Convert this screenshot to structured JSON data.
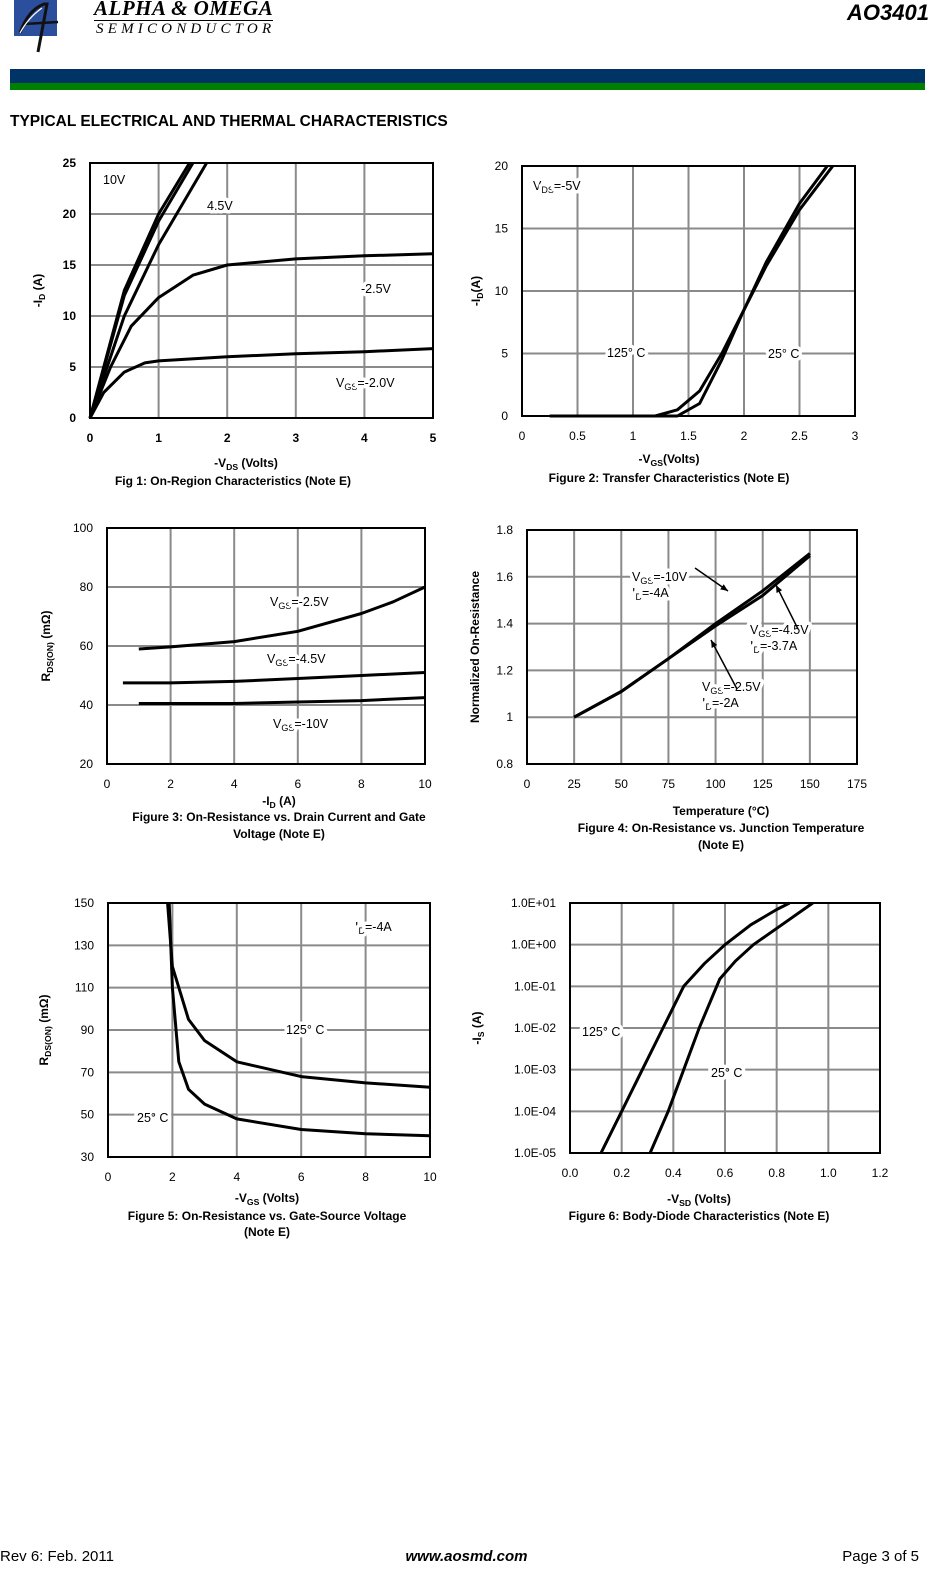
{
  "header": {
    "brand_name": "ALPHA & OMEGA",
    "brand_sub": "SEMICONDUCTOR",
    "part_number": "AO3401",
    "section_title": "TYPICAL ELECTRICAL AND THERMAL CHARACTERISTICS",
    "colors": {
      "bar_top": "#003366",
      "bar_bottom": "#008000",
      "logo": "#2b4f9c"
    }
  },
  "footer": {
    "revision": "Rev 6: Feb. 2011",
    "url": "www.aosmd.com",
    "page": "Page 3 of 5"
  },
  "chart_data": [
    {
      "type": "line",
      "caption": "Fig 1: On-Region Characteristics (Note E)",
      "xlabel": {
        "pre": "-V",
        "sub": "DS",
        "post": " (Volts)"
      },
      "ylabel": {
        "pre": "-I",
        "sub": "D",
        "post": " (A)"
      },
      "xlim": [
        0,
        5
      ],
      "ylim": [
        0,
        25
      ],
      "grid": true,
      "yscale": "linear",
      "xticks": [
        0,
        1,
        2,
        3,
        4,
        5
      ],
      "xtick_labels": [
        "0",
        "1",
        "2",
        "3",
        "4",
        "5"
      ],
      "yticks": [
        0,
        5,
        10,
        15,
        20,
        25
      ],
      "ytick_labels": [
        "0",
        "5",
        "10",
        "15",
        "20",
        "25"
      ],
      "annotations": [
        {
          "pre": "10V",
          "sub": "",
          "post": ""
        },
        {
          "pre": "4.5V",
          "sub": "",
          "post": ""
        },
        {
          "pre": "-2.5V",
          "sub": "",
          "post": ""
        },
        {
          "pre": "V",
          "sub": "GS",
          "post": "=-2.0V"
        }
      ],
      "series": [
        {
          "x": [
            0,
            0.5,
            1,
            1.45
          ],
          "y": [
            0,
            12.5,
            20,
            25
          ]
        },
        {
          "x": [
            0,
            0.5,
            1,
            1.5
          ],
          "y": [
            0,
            12,
            19.3,
            25
          ]
        },
        {
          "x": [
            0,
            0.5,
            1,
            1.7
          ],
          "y": [
            0,
            10,
            17,
            25
          ]
        },
        {
          "x": [
            0,
            0.3,
            0.6,
            1,
            1.5,
            2,
            3,
            4,
            5
          ],
          "y": [
            0,
            5,
            9,
            11.8,
            14,
            15,
            15.6,
            15.9,
            16.1
          ]
        },
        {
          "x": [
            0,
            0.2,
            0.5,
            0.8,
            1,
            2,
            3,
            4,
            5
          ],
          "y": [
            0,
            2.5,
            4.5,
            5.4,
            5.6,
            6,
            6.3,
            6.5,
            6.8
          ]
        }
      ]
    },
    {
      "type": "line",
      "caption": "Figure 2: Transfer Characteristics (Note E)",
      "xlabel": {
        "pre": "-V",
        "sub": "GS",
        "post": "(Volts)"
      },
      "ylabel": {
        "pre": "-I",
        "sub": "D",
        "post": "(A)"
      },
      "xlim": [
        0,
        3
      ],
      "ylim": [
        0,
        20
      ],
      "grid": true,
      "yscale": "linear",
      "xticks": [
        0,
        0.5,
        1,
        1.5,
        2,
        2.5,
        3
      ],
      "xtick_labels": [
        "0",
        "0.5",
        "1",
        "1.5",
        "2",
        "2.5",
        "3"
      ],
      "yticks": [
        0,
        5,
        10,
        15,
        20
      ],
      "ytick_labels": [
        "0",
        "5",
        "10",
        "15",
        "20"
      ],
      "annotations": [
        {
          "pre": "V",
          "sub": "DS",
          "post": "=-5V"
        },
        {
          "pre": "125° C",
          "sub": "",
          "post": ""
        },
        {
          "pre": "25° C",
          "sub": "",
          "post": ""
        }
      ],
      "series": [
        {
          "name": "125° C",
          "x": [
            0.25,
            1.2,
            1.4,
            1.6,
            1.8,
            2,
            2.2,
            2.5,
            2.8
          ],
          "y": [
            0,
            0,
            0.5,
            2,
            5,
            8.5,
            12,
            16.5,
            20
          ]
        },
        {
          "name": "25° C",
          "x": [
            0.25,
            1.4,
            1.6,
            1.8,
            2,
            2.2,
            2.5,
            2.75
          ],
          "y": [
            0,
            0,
            1,
            4.5,
            8.5,
            12.3,
            17,
            20
          ]
        }
      ]
    },
    {
      "type": "line",
      "caption": [
        "Figure 3: On-Resistance vs. Drain Current and Gate",
        "Voltage (Note E)"
      ],
      "xlabel": {
        "pre": "-I",
        "sub": "D",
        "post": " (A)"
      },
      "ylabel": {
        "pre": "R",
        "sub": "DS(ON)",
        "post": " (mΩ)"
      },
      "xlim": [
        0,
        10
      ],
      "ylim": [
        20,
        100
      ],
      "grid": true,
      "yscale": "linear",
      "xticks": [
        0,
        2,
        4,
        6,
        8,
        10
      ],
      "xtick_labels": [
        "0",
        "2",
        "4",
        "6",
        "8",
        "10"
      ],
      "yticks": [
        20,
        40,
        60,
        80,
        100
      ],
      "ytick_labels": [
        "20",
        "40",
        "60",
        "80",
        "100"
      ],
      "annotations": [
        {
          "pre": "V",
          "sub": "GS",
          "post": "=-2.5V"
        },
        {
          "pre": "V",
          "sub": "GS",
          "post": "=-4.5V"
        },
        {
          "pre": "V",
          "sub": "GS",
          "post": "=-10V"
        }
      ],
      "series": [
        {
          "name": "VGS=-2.5V",
          "x": [
            1,
            2,
            4,
            6,
            8,
            9,
            10
          ],
          "y": [
            59,
            59.7,
            61.5,
            65,
            71,
            75,
            80
          ]
        },
        {
          "name": "VGS=-4.5V",
          "x": [
            0.5,
            2,
            4,
            6,
            8,
            10
          ],
          "y": [
            47.5,
            47.5,
            48,
            49,
            50,
            51
          ]
        },
        {
          "name": "VGS=-10V",
          "x": [
            1,
            4,
            6,
            8,
            10
          ],
          "y": [
            40.5,
            40.5,
            41,
            41.5,
            42.5
          ]
        }
      ]
    },
    {
      "type": "line",
      "caption": [
        "Figure 4: On-Resistance vs. Junction Temperature",
        "(Note E)"
      ],
      "xlabel": {
        "pre": "Temperature (°C)",
        "sub": "",
        "post": ""
      },
      "ylabel": {
        "pre": "Normalized On-Resistance",
        "sub": "",
        "post": ""
      },
      "xlim": [
        0,
        175
      ],
      "ylim": [
        0.8,
        1.8
      ],
      "grid": true,
      "yscale": "linear",
      "xticks": [
        0,
        25,
        50,
        75,
        100,
        125,
        150,
        175
      ],
      "xtick_labels": [
        "0",
        "25",
        "50",
        "75",
        "100",
        "125",
        "150",
        "175"
      ],
      "yticks": [
        0.8,
        1,
        1.2,
        1.4,
        1.6,
        1.8
      ],
      "ytick_labels": [
        "0.8",
        "1",
        "1.2",
        "1.4",
        "1.6",
        "1.8"
      ],
      "annotations": [
        {
          "pre": "V",
          "sub": "GS",
          "post": "=-10V"
        },
        {
          "pre": "I",
          "sub": "D",
          "post": "=-4A"
        },
        {
          "pre": "V",
          "sub": "GS",
          "post": "=-4.5V"
        },
        {
          "pre": "I",
          "sub": "D",
          "post": "=-3.7A"
        },
        {
          "pre": "V",
          "sub": "GS",
          "post": "=-2.5V"
        },
        {
          "pre": "I",
          "sub": "D",
          "post": "=-2A"
        }
      ],
      "series": [
        {
          "x": [
            25,
            50,
            75,
            100,
            125,
            150
          ],
          "y": [
            1,
            1.11,
            1.25,
            1.39,
            1.52,
            1.69
          ]
        },
        {
          "x": [
            25,
            50,
            75,
            100,
            125,
            150
          ],
          "y": [
            1,
            1.11,
            1.25,
            1.4,
            1.54,
            1.7
          ]
        }
      ]
    },
    {
      "type": "line",
      "caption": [
        "Figure 5: On-Resistance vs. Gate-Source Voltage",
        "(Note E)"
      ],
      "xlabel": {
        "pre": "-V",
        "sub": "GS",
        "post": " (Volts)"
      },
      "ylabel": {
        "pre": "R",
        "sub": "DS(ON)",
        "post": " (mΩ)"
      },
      "xlim": [
        0,
        10
      ],
      "ylim": [
        30,
        150
      ],
      "grid": true,
      "yscale": "linear",
      "xticks": [
        0,
        2,
        4,
        6,
        8,
        10
      ],
      "xtick_labels": [
        "0",
        "2",
        "4",
        "6",
        "8",
        "10"
      ],
      "yticks": [
        30,
        50,
        70,
        90,
        110,
        130,
        150
      ],
      "ytick_labels": [
        "30",
        "50",
        "70",
        "90",
        "110",
        "130",
        "150"
      ],
      "annotations": [
        {
          "pre": "I",
          "sub": "D",
          "post": "=-4A"
        },
        {
          "pre": "125° C",
          "sub": "",
          "post": ""
        },
        {
          "pre": "25° C",
          "sub": "",
          "post": ""
        }
      ],
      "series": [
        {
          "name": "125° C",
          "x": [
            1.85,
            2,
            2.5,
            3,
            4,
            6,
            8,
            10
          ],
          "y": [
            150,
            120,
            95,
            85,
            75,
            68,
            65,
            63
          ]
        },
        {
          "name": "25° C",
          "x": [
            1.9,
            2,
            2.2,
            2.5,
            3,
            4,
            6,
            8,
            10
          ],
          "y": [
            150,
            110,
            75,
            62,
            55,
            48,
            43,
            41,
            40
          ]
        }
      ]
    },
    {
      "type": "line",
      "caption": "Figure 6: Body-Diode Characteristics (Note E)",
      "xlabel": {
        "pre": "-V",
        "sub": "SD",
        "post": " (Volts)"
      },
      "ylabel": {
        "pre": "-I",
        "sub": "S",
        "post": " (A)"
      },
      "xlim": [
        0,
        1.2
      ],
      "ylim": [
        1e-05,
        10
      ],
      "grid": true,
      "yscale": "log",
      "xticks": [
        0,
        0.2,
        0.4,
        0.6,
        0.8,
        1.0,
        1.2
      ],
      "xtick_labels": [
        "0.0",
        "0.2",
        "0.4",
        "0.6",
        "0.8",
        "1.0",
        "1.2"
      ],
      "yticks": [
        1e-05,
        0.0001,
        0.001,
        0.01,
        0.1,
        1,
        10
      ],
      "ytick_labels": [
        "1.0E-05",
        "1.0E-04",
        "1.0E-03",
        "1.0E-02",
        "1.0E-01",
        "1.0E+00",
        "1.0E+01"
      ],
      "annotations": [
        {
          "pre": "125° C",
          "sub": "",
          "post": ""
        },
        {
          "pre": "25° C",
          "sub": "",
          "post": ""
        }
      ],
      "series": [
        {
          "name": "125° C",
          "x": [
            0.12,
            0.2,
            0.28,
            0.36,
            0.44,
            0.52,
            0.6,
            0.7,
            0.8,
            0.85
          ],
          "y": [
            1e-05,
            0.0001,
            0.001,
            0.01,
            0.1,
            0.35,
            1,
            3,
            7,
            10
          ]
        },
        {
          "name": "25° C",
          "x": [
            0.31,
            0.38,
            0.44,
            0.5,
            0.58,
            0.64,
            0.71,
            0.82,
            0.94
          ],
          "y": [
            1e-05,
            0.0001,
            0.001,
            0.01,
            0.15,
            0.4,
            1,
            3,
            10
          ]
        }
      ]
    }
  ]
}
